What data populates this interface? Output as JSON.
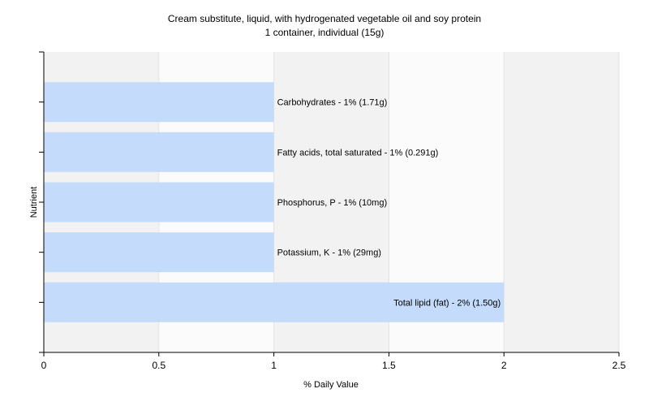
{
  "chart_data": {
    "type": "bar",
    "orientation": "horizontal",
    "title": "Cream substitute, liquid, with hydrogenated vegetable oil and soy protein",
    "subtitle": "1 container, individual (15g)",
    "xlabel": "% Daily Value",
    "ylabel": "Nutrient",
    "xlim": [
      0,
      2.5
    ],
    "xticks": [
      "0",
      "0.5",
      "1",
      "1.5",
      "2",
      "2.5"
    ],
    "grid": true,
    "legend": "none",
    "bar_color": "#c4dbfc",
    "categories": [
      "Carbohydrates",
      "Fatty acids, total saturated",
      "Phosphorus, P",
      "Potassium, K",
      "Total lipid (fat)"
    ],
    "values": [
      1,
      1,
      1,
      1,
      2
    ],
    "data_labels": [
      "Carbohydrates - 1% (1.71g)",
      "Fatty acids, total saturated - 1% (0.291g)",
      "Phosphorus, P - 1% (10mg)",
      "Potassium, K - 1% (29mg)",
      "Total lipid (fat) - 2% (1.50g)"
    ]
  }
}
